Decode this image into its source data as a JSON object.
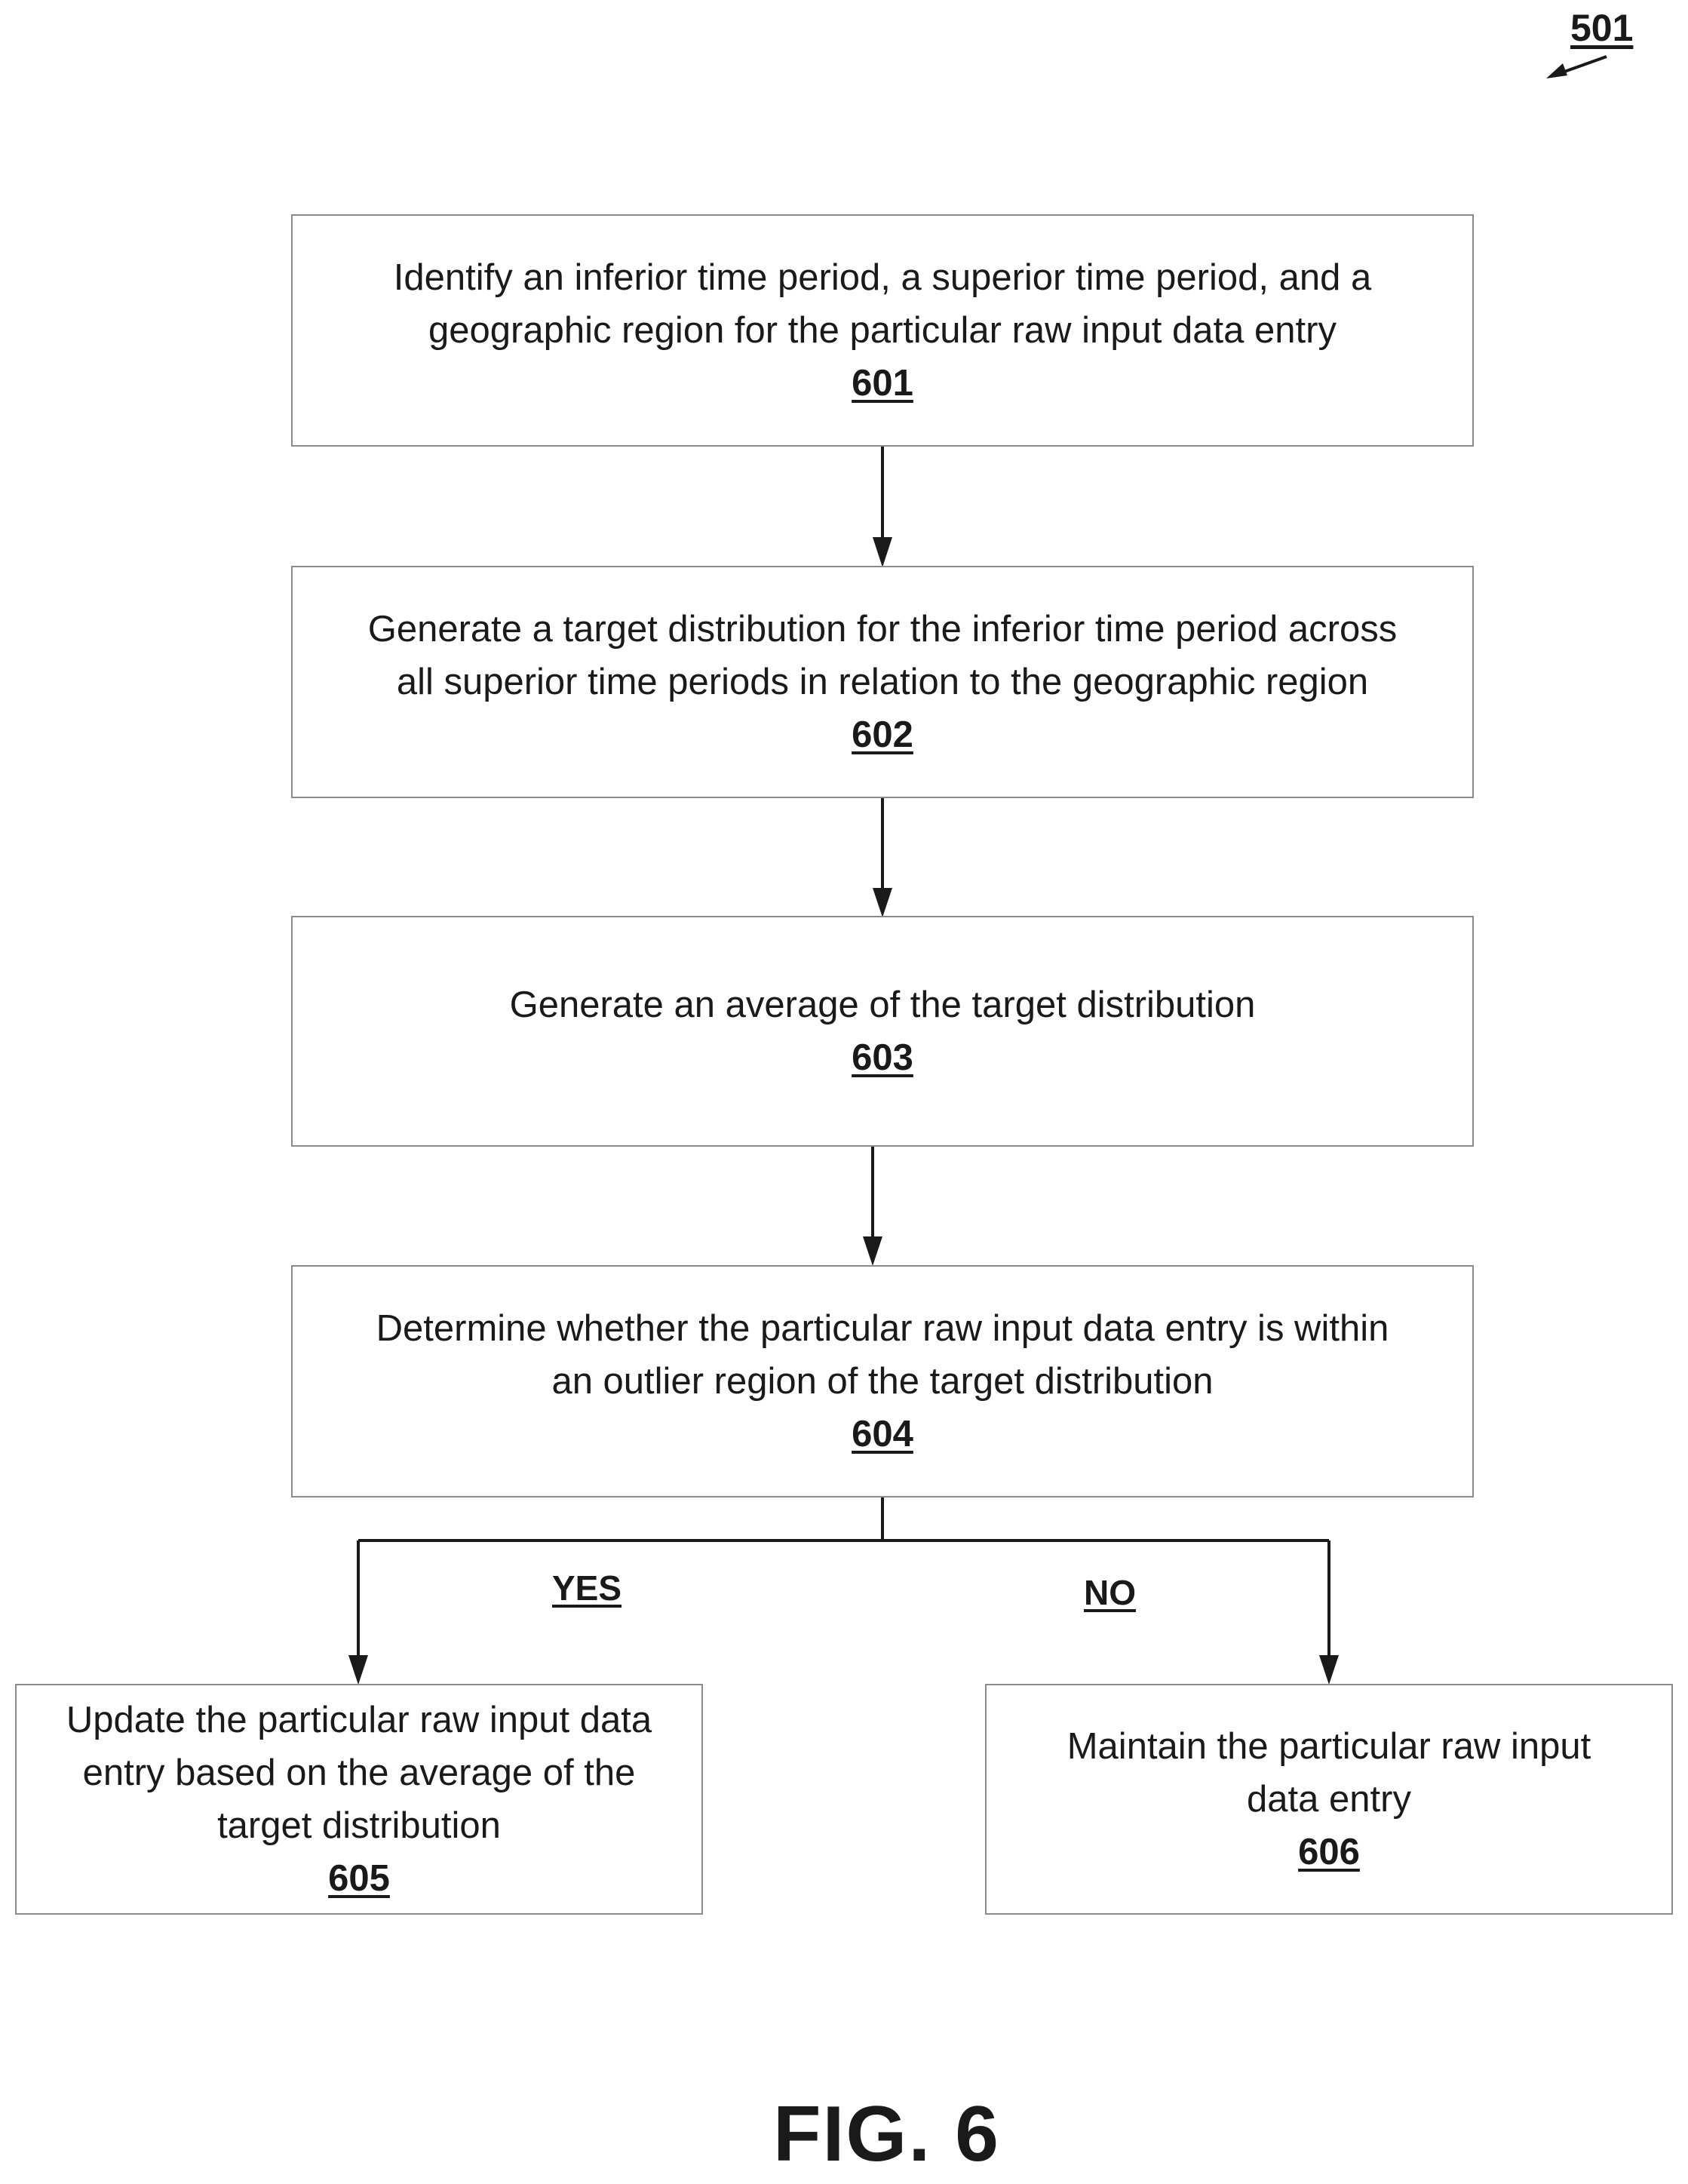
{
  "figure": {
    "ref_label": "501",
    "caption": "FIG. 6"
  },
  "steps": [
    {
      "text_lines": [
        "Identify an inferior time period, a superior time period, and a",
        "geographic region for the particular raw input data entry"
      ],
      "number": "601"
    },
    {
      "text_lines": [
        "Generate a target distribution for the inferior time period across",
        "all superior time periods in relation to the geographic region"
      ],
      "number": "602"
    },
    {
      "text_lines": [
        "Generate an average of the target distribution"
      ],
      "number": "603"
    },
    {
      "text_lines": [
        "Determine whether the particular raw input data entry is within",
        "an outlier region of the target distribution"
      ],
      "number": "604"
    },
    {
      "text_lines": [
        "Update the particular raw input data",
        "entry based on the average of the",
        "target distribution"
      ],
      "number": "605"
    },
    {
      "text_lines": [
        "Maintain the particular raw input",
        "data entry"
      ],
      "number": "606"
    }
  ],
  "branches": {
    "yes_label": "YES",
    "no_label": "NO"
  }
}
